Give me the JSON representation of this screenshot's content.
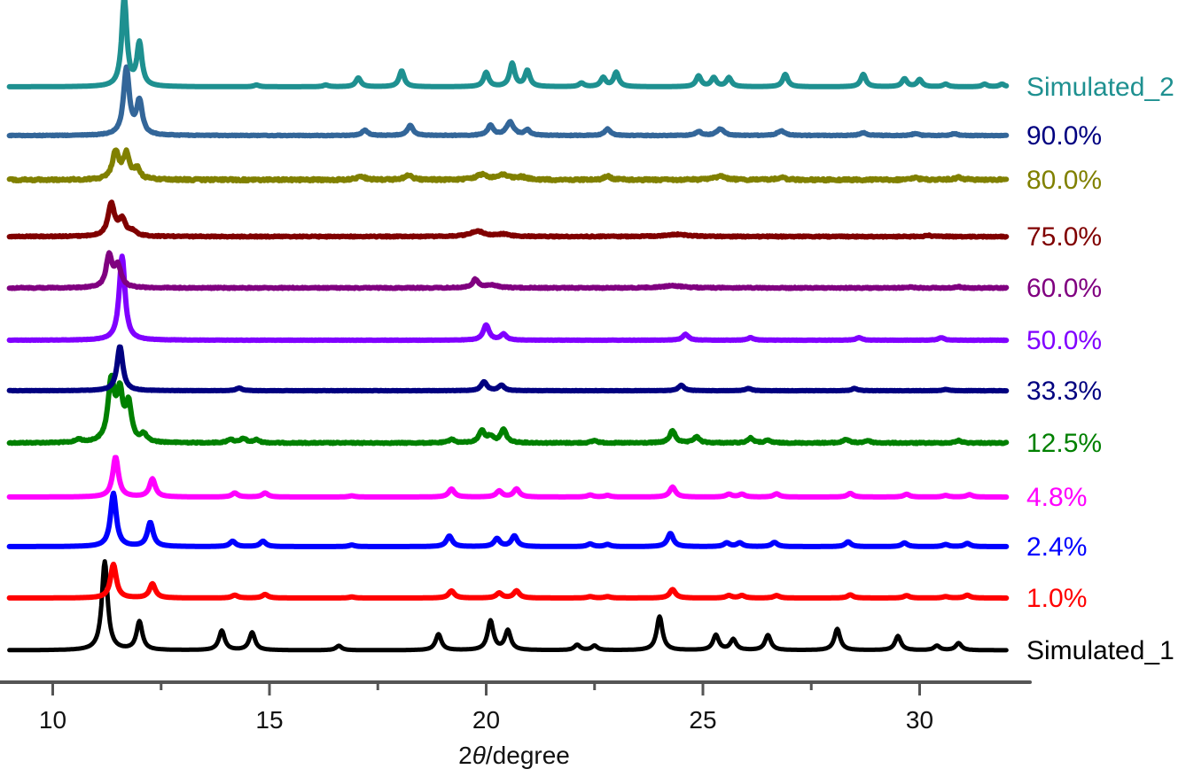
{
  "chart_data": {
    "type": "line",
    "title": "",
    "xlabel_prefix": "2",
    "xlabel_symbol": "θ",
    "xlabel_suffix": "/degree",
    "ylabel": "",
    "xlim": [
      9,
      32
    ],
    "xticks": [
      10,
      15,
      20,
      25,
      30
    ],
    "xtick_labels": [
      "10",
      "15",
      "20",
      "25",
      "30"
    ],
    "minor_xticks": [
      12.5,
      17.5,
      22.5,
      27.5
    ],
    "grid": false,
    "legend": "inline-right",
    "series": [
      {
        "name": "Simulated_1",
        "color": "#000000",
        "width": 5,
        "noise": 0,
        "peaks": [
          [
            11.2,
            1.0,
            0.08
          ],
          [
            12.0,
            0.32,
            0.08
          ],
          [
            13.9,
            0.22,
            0.08
          ],
          [
            14.6,
            0.2,
            0.08
          ],
          [
            16.6,
            0.05,
            0.08
          ],
          [
            18.9,
            0.18,
            0.08
          ],
          [
            20.1,
            0.33,
            0.08
          ],
          [
            20.5,
            0.22,
            0.08
          ],
          [
            22.1,
            0.06,
            0.08
          ],
          [
            22.5,
            0.05,
            0.08
          ],
          [
            24.0,
            0.38,
            0.08
          ],
          [
            25.3,
            0.17,
            0.08
          ],
          [
            25.7,
            0.12,
            0.08
          ],
          [
            26.5,
            0.17,
            0.08
          ],
          [
            28.1,
            0.24,
            0.08
          ],
          [
            29.5,
            0.16,
            0.08
          ],
          [
            30.4,
            0.05,
            0.08
          ],
          [
            30.9,
            0.08,
            0.08
          ]
        ]
      },
      {
        "name": "1.0%",
        "color": "#ff0000",
        "width": 6,
        "noise": 0,
        "peaks": [
          [
            11.4,
            0.95,
            0.08
          ],
          [
            12.3,
            0.4,
            0.08
          ],
          [
            14.2,
            0.08,
            0.08
          ],
          [
            14.9,
            0.1,
            0.08
          ],
          [
            16.9,
            0.03,
            0.08
          ],
          [
            19.2,
            0.2,
            0.08
          ],
          [
            20.3,
            0.14,
            0.08
          ],
          [
            20.7,
            0.2,
            0.08
          ],
          [
            22.4,
            0.04,
            0.08
          ],
          [
            22.8,
            0.04,
            0.08
          ],
          [
            24.3,
            0.24,
            0.08
          ],
          [
            25.6,
            0.07,
            0.08
          ],
          [
            25.9,
            0.07,
            0.08
          ],
          [
            26.7,
            0.07,
            0.08
          ],
          [
            28.4,
            0.09,
            0.08
          ],
          [
            29.7,
            0.07,
            0.08
          ],
          [
            30.6,
            0.04,
            0.08
          ],
          [
            31.1,
            0.08,
            0.08
          ]
        ]
      },
      {
        "name": "2.4%",
        "color": "#0000ff",
        "width": 6,
        "noise": 0,
        "peaks": [
          [
            11.4,
            1.0,
            0.08
          ],
          [
            12.25,
            0.45,
            0.08
          ],
          [
            14.15,
            0.1,
            0.08
          ],
          [
            14.85,
            0.1,
            0.08
          ],
          [
            16.9,
            0.03,
            0.08
          ],
          [
            19.15,
            0.2,
            0.08
          ],
          [
            20.25,
            0.15,
            0.08
          ],
          [
            20.65,
            0.2,
            0.08
          ],
          [
            22.4,
            0.05,
            0.08
          ],
          [
            22.8,
            0.04,
            0.08
          ],
          [
            24.25,
            0.25,
            0.08
          ],
          [
            25.55,
            0.07,
            0.08
          ],
          [
            25.85,
            0.07,
            0.08
          ],
          [
            26.65,
            0.08,
            0.08
          ],
          [
            28.35,
            0.09,
            0.08
          ],
          [
            29.65,
            0.07,
            0.08
          ],
          [
            30.6,
            0.04,
            0.08
          ],
          [
            31.1,
            0.06,
            0.08
          ]
        ]
      },
      {
        "name": "4.8%",
        "color": "#ff00ff",
        "width": 6,
        "noise": 0,
        "peaks": [
          [
            11.45,
            1.0,
            0.08
          ],
          [
            12.3,
            0.45,
            0.08
          ],
          [
            14.2,
            0.1,
            0.08
          ],
          [
            14.9,
            0.1,
            0.08
          ],
          [
            16.9,
            0.03,
            0.08
          ],
          [
            19.2,
            0.2,
            0.08
          ],
          [
            20.3,
            0.15,
            0.08
          ],
          [
            20.7,
            0.2,
            0.08
          ],
          [
            22.4,
            0.05,
            0.08
          ],
          [
            22.8,
            0.04,
            0.08
          ],
          [
            24.3,
            0.25,
            0.08
          ],
          [
            25.6,
            0.07,
            0.08
          ],
          [
            25.9,
            0.07,
            0.08
          ],
          [
            26.7,
            0.08,
            0.08
          ],
          [
            28.4,
            0.09,
            0.08
          ],
          [
            29.7,
            0.07,
            0.08
          ],
          [
            30.6,
            0.04,
            0.08
          ],
          [
            31.15,
            0.06,
            0.08
          ]
        ]
      },
      {
        "name": "12.5%",
        "color": "#008000",
        "width": 6,
        "noise": 0.6,
        "peaks": [
          [
            10.6,
            0.05,
            0.08
          ],
          [
            11.35,
            1.0,
            0.09
          ],
          [
            11.55,
            0.75,
            0.08
          ],
          [
            11.75,
            0.6,
            0.08
          ],
          [
            12.1,
            0.12,
            0.08
          ],
          [
            14.1,
            0.06,
            0.08
          ],
          [
            14.4,
            0.07,
            0.08
          ],
          [
            14.7,
            0.05,
            0.08
          ],
          [
            19.2,
            0.06,
            0.08
          ],
          [
            19.9,
            0.2,
            0.08
          ],
          [
            20.1,
            0.1,
            0.08
          ],
          [
            20.4,
            0.22,
            0.08
          ],
          [
            22.5,
            0.04,
            0.08
          ],
          [
            24.3,
            0.2,
            0.08
          ],
          [
            24.85,
            0.1,
            0.08
          ],
          [
            26.1,
            0.08,
            0.08
          ],
          [
            26.5,
            0.04,
            0.08
          ],
          [
            28.3,
            0.06,
            0.08
          ],
          [
            28.8,
            0.04,
            0.08
          ],
          [
            30.9,
            0.04,
            0.08
          ]
        ]
      },
      {
        "name": "33.3%",
        "color": "#000080",
        "width": 6,
        "noise": 0.2,
        "peaks": [
          [
            11.55,
            1.0,
            0.08
          ],
          [
            14.3,
            0.06,
            0.08
          ],
          [
            19.95,
            0.2,
            0.08
          ],
          [
            20.35,
            0.12,
            0.08
          ],
          [
            24.5,
            0.12,
            0.08
          ],
          [
            26.05,
            0.05,
            0.08
          ],
          [
            28.5,
            0.05,
            0.08
          ],
          [
            30.6,
            0.03,
            0.08
          ]
        ]
      },
      {
        "name": "50.0%",
        "color": "#8000ff",
        "width": 6,
        "noise": 0.2,
        "peaks": [
          [
            11.6,
            1.0,
            0.08
          ],
          [
            20.0,
            0.18,
            0.08
          ],
          [
            20.4,
            0.07,
            0.08
          ],
          [
            24.6,
            0.07,
            0.08
          ],
          [
            26.1,
            0.03,
            0.08
          ],
          [
            28.6,
            0.03,
            0.08
          ],
          [
            30.5,
            0.03,
            0.08
          ]
        ]
      },
      {
        "name": "60.0%",
        "color": "#800080",
        "width": 6,
        "noise": 0.6,
        "peaks": [
          [
            11.3,
            0.6,
            0.08
          ],
          [
            11.5,
            0.4,
            0.09
          ],
          [
            19.75,
            0.15,
            0.08
          ],
          [
            20.1,
            0.05,
            0.2
          ],
          [
            24.3,
            0.04,
            0.3
          ],
          [
            29.8,
            0.02,
            0.08
          ],
          [
            30.9,
            0.02,
            0.08
          ]
        ]
      },
      {
        "name": "75.0%",
        "color": "#800000",
        "width": 6,
        "noise": 0.6,
        "peaks": [
          [
            11.35,
            0.6,
            0.09
          ],
          [
            11.6,
            0.3,
            0.1
          ],
          [
            11.85,
            0.08,
            0.09
          ],
          [
            19.8,
            0.1,
            0.2
          ],
          [
            20.4,
            0.04,
            0.15
          ],
          [
            24.4,
            0.04,
            0.3
          ],
          [
            30.2,
            0.02,
            0.08
          ]
        ]
      },
      {
        "name": "80.0%",
        "color": "#808000",
        "width": 6,
        "noise": 1.2,
        "peaks": [
          [
            11.45,
            0.55,
            0.09
          ],
          [
            11.7,
            0.5,
            0.09
          ],
          [
            11.95,
            0.2,
            0.08
          ],
          [
            17.1,
            0.08,
            0.1
          ],
          [
            18.2,
            0.1,
            0.1
          ],
          [
            19.9,
            0.1,
            0.15
          ],
          [
            20.4,
            0.1,
            0.15
          ],
          [
            20.8,
            0.05,
            0.15
          ],
          [
            22.8,
            0.07,
            0.1
          ],
          [
            25.4,
            0.07,
            0.15
          ],
          [
            26.8,
            0.05,
            0.1
          ],
          [
            29.9,
            0.04,
            0.1
          ],
          [
            30.9,
            0.05,
            0.1
          ]
        ]
      },
      {
        "name": "90.0%",
        "color": "#336699",
        "width": 6,
        "noise": 0.4,
        "peaks": [
          [
            11.7,
            1.0,
            0.08
          ],
          [
            12.0,
            0.5,
            0.08
          ],
          [
            17.2,
            0.08,
            0.08
          ],
          [
            18.25,
            0.15,
            0.08
          ],
          [
            20.1,
            0.15,
            0.08
          ],
          [
            20.55,
            0.2,
            0.1
          ],
          [
            20.95,
            0.08,
            0.08
          ],
          [
            22.8,
            0.1,
            0.08
          ],
          [
            24.9,
            0.06,
            0.08
          ],
          [
            25.4,
            0.1,
            0.1
          ],
          [
            26.8,
            0.07,
            0.1
          ],
          [
            28.7,
            0.04,
            0.1
          ],
          [
            29.9,
            0.03,
            0.08
          ],
          [
            30.8,
            0.03,
            0.08
          ]
        ]
      },
      {
        "name": "Simulated_2",
        "color": "#1e9090",
        "width": 6,
        "noise": 0,
        "peaks": [
          [
            11.65,
            1.0,
            0.07
          ],
          [
            12.0,
            0.48,
            0.07
          ],
          [
            14.7,
            0.02,
            0.07
          ],
          [
            16.3,
            0.02,
            0.07
          ],
          [
            17.05,
            0.1,
            0.07
          ],
          [
            18.05,
            0.18,
            0.07
          ],
          [
            20.0,
            0.16,
            0.07
          ],
          [
            20.6,
            0.26,
            0.07
          ],
          [
            20.95,
            0.18,
            0.07
          ],
          [
            22.2,
            0.04,
            0.07
          ],
          [
            22.7,
            0.1,
            0.07
          ],
          [
            23.0,
            0.16,
            0.07
          ],
          [
            24.9,
            0.12,
            0.07
          ],
          [
            25.25,
            0.1,
            0.07
          ],
          [
            25.6,
            0.1,
            0.07
          ],
          [
            26.9,
            0.14,
            0.07
          ],
          [
            28.7,
            0.14,
            0.07
          ],
          [
            29.65,
            0.09,
            0.07
          ],
          [
            30.0,
            0.08,
            0.07
          ],
          [
            30.6,
            0.03,
            0.07
          ],
          [
            31.5,
            0.03,
            0.07
          ],
          [
            31.9,
            0.03,
            0.07
          ]
        ]
      }
    ]
  }
}
